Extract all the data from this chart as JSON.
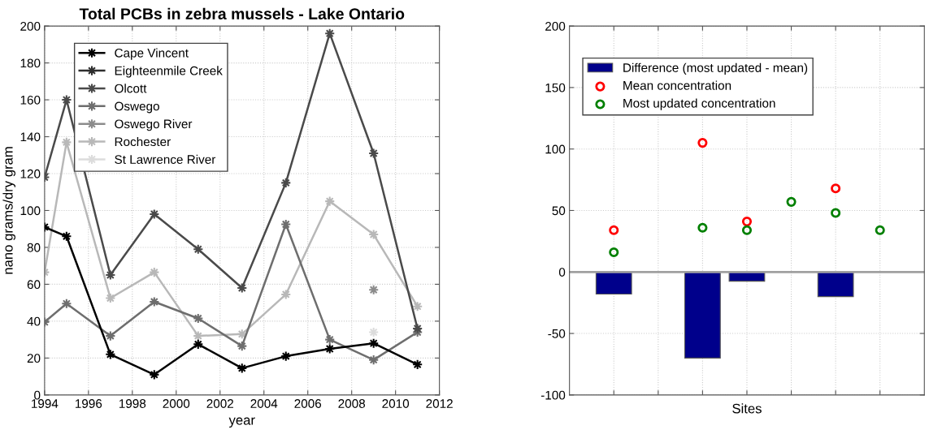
{
  "chart_data": [
    {
      "type": "line",
      "title": "Total PCBs in zebra mussels - Lake Ontario",
      "xlabel": "year",
      "ylabel": "nano grams/dry gram",
      "x": [
        1994,
        1995,
        1997,
        1999,
        2001,
        2003,
        2005,
        2007,
        2009,
        2011
      ],
      "series": [
        {
          "name": "Cape Vincent",
          "color": "#000000",
          "values": [
            91,
            86,
            22,
            11,
            27.5,
            14.5,
            21,
            25,
            28,
            16.5
          ]
        },
        {
          "name": "Eighteenmile Creek",
          "color": "#2e2e2e",
          "values": [
            null,
            null,
            null,
            null,
            null,
            null,
            null,
            null,
            null,
            null
          ]
        },
        {
          "name": "Olcott",
          "color": "#4a4a4a",
          "values": [
            118,
            160,
            65,
            98,
            79,
            58,
            115,
            196,
            131,
            36
          ]
        },
        {
          "name": "Oswego",
          "color": "#6e6e6e",
          "values": [
            39.5,
            49.5,
            32,
            50.5,
            41.5,
            26.5,
            92.5,
            30,
            19,
            34
          ]
        },
        {
          "name": "Oswego River",
          "color": "#8c8c8c",
          "values": [
            null,
            null,
            null,
            null,
            null,
            null,
            null,
            null,
            57,
            null
          ]
        },
        {
          "name": "Rochester",
          "color": "#b8b8b8",
          "values": [
            66.5,
            137,
            52.5,
            66.5,
            32,
            33,
            54.5,
            105,
            87,
            48
          ]
        },
        {
          "name": "St Lawrence River",
          "color": "#dcdcdc",
          "values": [
            null,
            null,
            null,
            null,
            null,
            null,
            null,
            null,
            34,
            null
          ]
        }
      ],
      "xlim": [
        1994,
        2012
      ],
      "xticks": [
        1994,
        1996,
        1998,
        2000,
        2002,
        2004,
        2006,
        2008,
        2010,
        2012
      ],
      "ylim": [
        0,
        200
      ],
      "yticks": [
        0,
        20,
        40,
        60,
        80,
        100,
        120,
        140,
        160,
        180,
        200
      ],
      "grid": true,
      "legend": "top left",
      "marker": "star",
      "line_style": "solid"
    },
    {
      "type": "bar",
      "xlabel": "Sites",
      "categories": [
        null,
        null,
        null,
        null,
        null,
        null,
        null
      ],
      "series": [
        {
          "name": "Difference (most updated - mean)",
          "type": "bar",
          "color": "#00008b",
          "values": [
            -18,
            null,
            -70,
            -7.5,
            null,
            -20,
            null
          ]
        },
        {
          "name": "Mean concentration",
          "type": "scatter",
          "color": "#ff0000",
          "values": [
            34,
            null,
            105,
            41,
            null,
            68,
            null
          ]
        },
        {
          "name": "Most updated concentration",
          "type": "scatter",
          "color": "#008000",
          "values": [
            16,
            null,
            36,
            34,
            57,
            48,
            34
          ]
        }
      ],
      "ylim": [
        -100,
        200
      ],
      "yticks": [
        -100,
        -50,
        0,
        50,
        100,
        150,
        200
      ],
      "ref_lines": [
        {
          "axis": "y",
          "value": 0,
          "color": "#a0a0a0"
        }
      ],
      "grid": true,
      "legend": "top left",
      "marker": "circle"
    }
  ]
}
